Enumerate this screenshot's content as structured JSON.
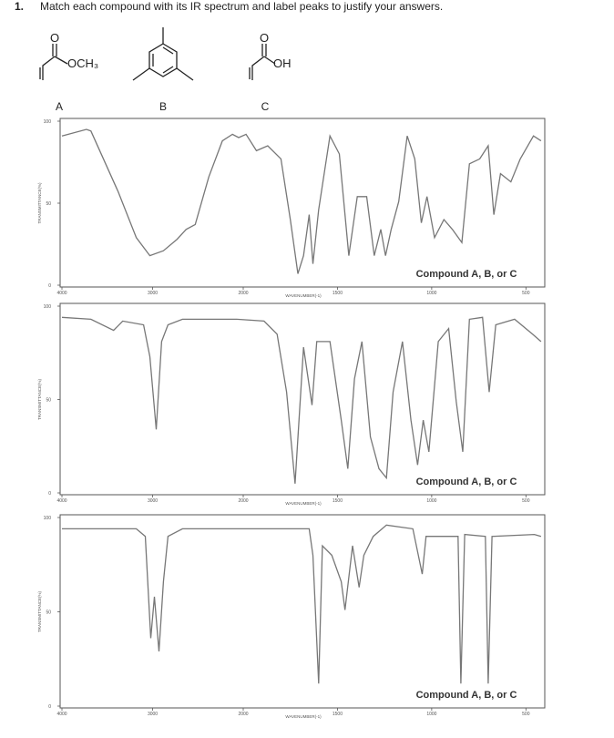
{
  "question": {
    "number": "1.",
    "text": "Match each compound with its IR spectrum and label peaks to justify your answers."
  },
  "compounds": [
    {
      "label": "A",
      "carbonyl_o": "O",
      "substituent": "OCH₃"
    },
    {
      "label": "B"
    },
    {
      "label": "C",
      "carbonyl_o": "O",
      "substituent": "OH"
    }
  ],
  "chart_data": [
    {
      "type": "line",
      "label": "Compound A, B, or C",
      "xlabel": "WAVENUMBER(-1)",
      "ylabel": "TRANSMITTANCE(%)",
      "xlim": [
        4000,
        400
      ],
      "x_scale_break": 2000,
      "ylim": [
        0,
        100
      ],
      "xticks": [
        4000,
        3000,
        2000,
        1500,
        1000,
        500
      ],
      "yticks": [
        0,
        50,
        100
      ],
      "color": "#777777",
      "x": [
        4000,
        3730,
        3680,
        3380,
        3180,
        3030,
        2880,
        2730,
        2630,
        2530,
        2380,
        2230,
        2120,
        2050,
        1985,
        1930,
        1870,
        1800,
        1750,
        1710,
        1680,
        1650,
        1630,
        1600,
        1540,
        1490,
        1440,
        1395,
        1345,
        1305,
        1270,
        1245,
        1215,
        1175,
        1130,
        1090,
        1055,
        1025,
        985,
        935,
        890,
        840,
        800,
        745,
        700,
        670,
        635,
        580,
        530,
        460,
        420
      ],
      "values": [
        91,
        95,
        94,
        57,
        29,
        18,
        21,
        28,
        34,
        37,
        66,
        88,
        92,
        90,
        92,
        82,
        85,
        77,
        40,
        7,
        18,
        43,
        13,
        46,
        91,
        80,
        18,
        54,
        54,
        18,
        34,
        18,
        34,
        51,
        91,
        77,
        38,
        54,
        29,
        40,
        34,
        26,
        74,
        77,
        85,
        43,
        68,
        63,
        77,
        91,
        88
      ]
    },
    {
      "type": "line",
      "label": "Compound A, B, or C",
      "xlabel": "WAVENUMBER(-1)",
      "ylabel": "TRANSMITTANCE(%)",
      "xlim": [
        4000,
        400
      ],
      "x_scale_break": 2000,
      "ylim": [
        0,
        100
      ],
      "xticks": [
        4000,
        3000,
        2000,
        1500,
        1000,
        500
      ],
      "yticks": [
        0,
        50,
        100
      ],
      "color": "#777777",
      "x": [
        4000,
        3680,
        3430,
        3330,
        3100,
        3030,
        2960,
        2900,
        2830,
        2670,
        2070,
        1890,
        1820,
        1770,
        1725,
        1680,
        1635,
        1610,
        1540,
        1480,
        1445,
        1410,
        1370,
        1325,
        1280,
        1240,
        1205,
        1155,
        1110,
        1075,
        1045,
        1015,
        965,
        910,
        870,
        835,
        800,
        730,
        695,
        660,
        560,
        465,
        420
      ],
      "values": [
        94,
        93,
        87,
        92,
        90,
        73,
        34,
        81,
        90,
        93,
        93,
        92,
        85,
        54,
        5,
        78,
        47,
        81,
        81,
        39,
        13,
        61,
        81,
        30,
        13,
        8,
        54,
        81,
        39,
        15,
        39,
        22,
        81,
        88,
        49,
        22,
        93,
        94,
        54,
        90,
        93,
        85,
        81
      ]
    },
    {
      "type": "line",
      "label": "Compound A, B, or C",
      "xlabel": "WAVENUMBER(-1)",
      "ylabel": "TRANSMITTANCE(%)",
      "xlim": [
        4000,
        400
      ],
      "x_scale_break": 2000,
      "ylim": [
        0,
        100
      ],
      "xticks": [
        4000,
        3000,
        2000,
        1500,
        1000,
        500
      ],
      "yticks": [
        0,
        50,
        100
      ],
      "color": "#777777",
      "x": [
        4000,
        3180,
        3080,
        3020,
        2980,
        2930,
        2880,
        2830,
        2670,
        1650,
        1630,
        1600,
        1580,
        1530,
        1480,
        1460,
        1420,
        1385,
        1360,
        1310,
        1240,
        1100,
        1050,
        1030,
        860,
        845,
        825,
        715,
        700,
        680,
        455,
        420
      ],
      "values": [
        94,
        94,
        90,
        36,
        58,
        29,
        66,
        90,
        94,
        94,
        80,
        12,
        85,
        80,
        66,
        51,
        85,
        63,
        80,
        90,
        96,
        94,
        70,
        90,
        90,
        12,
        91,
        90,
        12,
        90,
        91,
        90
      ]
    }
  ]
}
